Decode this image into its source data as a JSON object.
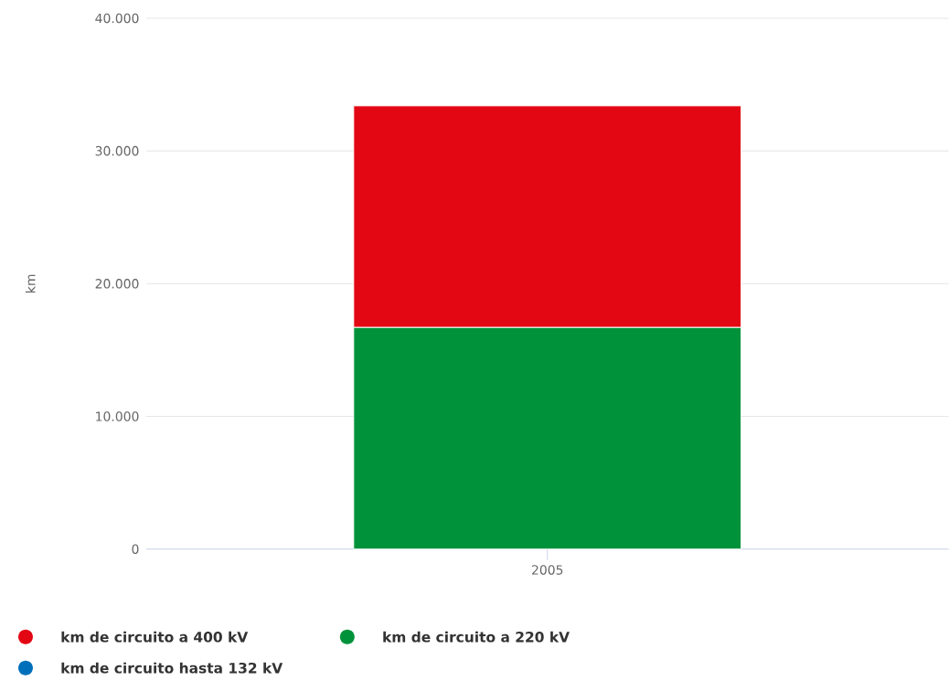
{
  "chart_data": {
    "type": "bar",
    "stacked": true,
    "ylabel": "km",
    "categories": [
      "2005"
    ],
    "series": [
      {
        "name": "km de circuito a 220 kV",
        "color": "#00923a",
        "values": [
          16700
        ]
      },
      {
        "name": "km de circuito a 400 kV",
        "color": "#e30613",
        "values": [
          16700
        ]
      },
      {
        "name": "km de circuito hasta 132 kV",
        "color": "#0070ba",
        "values": [
          null
        ]
      }
    ],
    "ylim": [
      0,
      40000
    ],
    "yticks": [
      {
        "value": 0,
        "label": "0"
      },
      {
        "value": 10000,
        "label": "10.000"
      },
      {
        "value": 20000,
        "label": "20.000"
      },
      {
        "value": 30000,
        "label": "30.000"
      },
      {
        "value": 40000,
        "label": "40.000"
      }
    ],
    "grid": "y",
    "legend": "bottom",
    "marker": "circle"
  }
}
